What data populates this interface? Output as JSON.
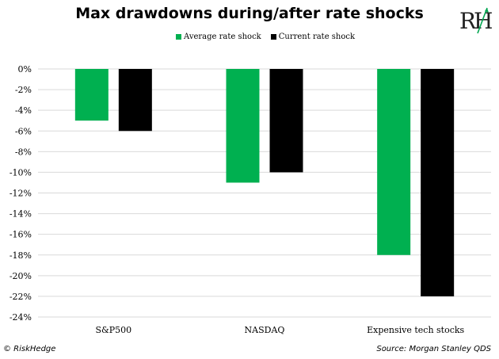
{
  "chart_data": {
    "type": "bar",
    "title": "Max drawdowns during/after rate shocks",
    "categories": [
      "S&P500",
      "NASDAQ",
      "Expensive tech stocks"
    ],
    "series": [
      {
        "name": "Average rate shock",
        "values": [
          -5,
          -11,
          -18
        ],
        "color": "#00b050"
      },
      {
        "name": "Current rate shock",
        "values": [
          -6,
          -10,
          -22
        ],
        "color": "#000000"
      }
    ],
    "ylim": [
      -24,
      0
    ],
    "yticks": [
      0,
      -2,
      -4,
      -6,
      -8,
      -10,
      -12,
      -14,
      -16,
      -18,
      -20,
      -22,
      -24
    ],
    "ytick_format": "%",
    "grid": true,
    "legend_position": "top-center"
  },
  "logo_text": "RH",
  "footer": {
    "copyright": "© RiskHedge",
    "source": "Source: Morgan Stanley QDS"
  }
}
